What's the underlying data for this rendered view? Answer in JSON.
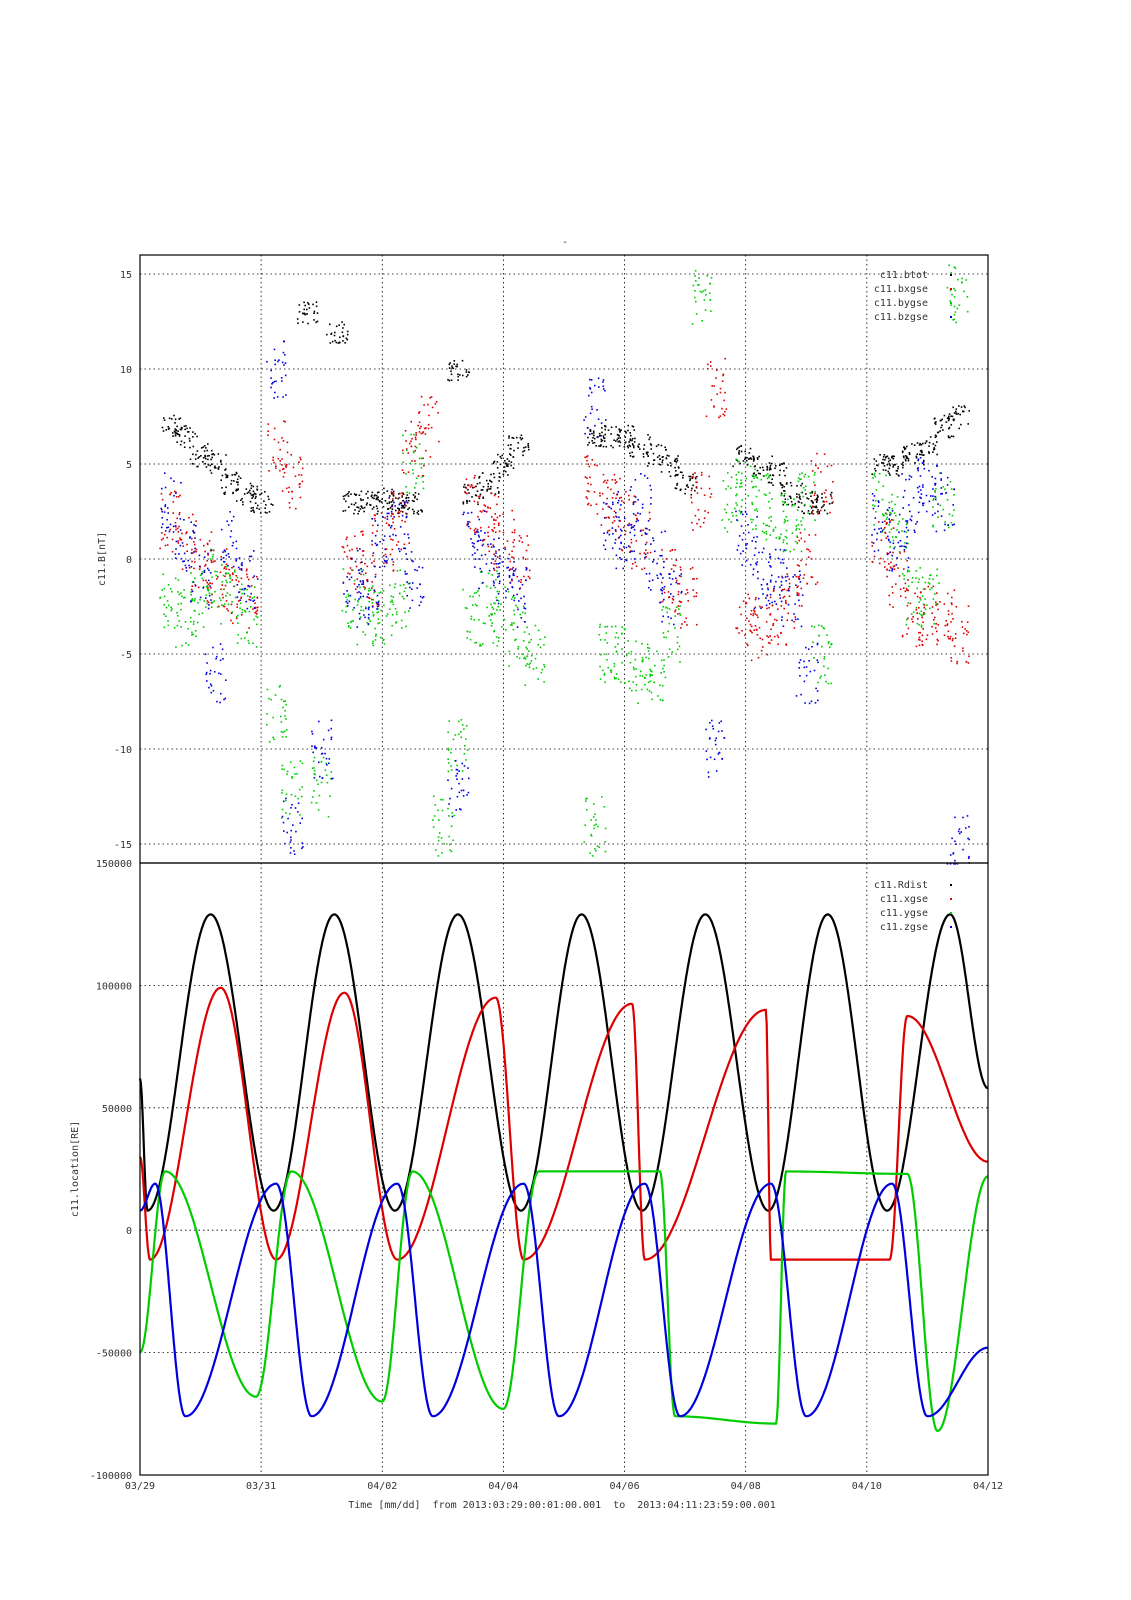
{
  "page_title_mark": "-",
  "colors": {
    "black": "#000000",
    "red": "#dd0000",
    "green": "#00cc00",
    "blue": "#0000dd"
  },
  "chart_data": [
    {
      "type": "scatter",
      "ylabel": "c11.B[nT]",
      "ylim": [
        -16,
        16
      ],
      "yticks": [
        -15,
        -10,
        -5,
        0,
        5,
        10,
        15
      ],
      "xlim": [
        "2013-03-29T00:01:00",
        "2013-04-11T23:59:00"
      ],
      "grid": true,
      "legend_position": "top-right",
      "series": [
        {
          "name": "c11.btot",
          "color": "#000000",
          "x": [
            "03/29 12:00",
            "03/29 18:00",
            "03/30 00:00",
            "03/30 06:00",
            "03/30 12:00",
            "03/30 18:00",
            "03/31 00:00",
            "03/31 18:00",
            "04/01 06:00",
            "04/01 12:00",
            "04/01 18:00",
            "04/02 00:00",
            "04/02 06:00",
            "04/02 12:00",
            "04/03 06:00",
            "04/03 12:00",
            "04/03 18:00",
            "04/04 00:00",
            "04/04 06:00",
            "04/05 12:00",
            "04/05 18:00",
            "04/06 00:00",
            "04/06 06:00",
            "04/06 12:00",
            "04/06 18:00",
            "04/07 00:00",
            "04/07 23:00",
            "04/08 06:00",
            "04/08 12:00",
            "04/08 18:00",
            "04/09 00:00",
            "04/09 06:00",
            "04/10 06:00",
            "04/10 12:00",
            "04/10 18:00",
            "04/11 00:00",
            "04/11 06:00",
            "04/11 12:00"
          ],
          "y": [
            7,
            6.5,
            5.5,
            5,
            4,
            3.5,
            3,
            13,
            12,
            3,
            3,
            3.2,
            3,
            3,
            10,
            3.5,
            4,
            5,
            6,
            6.5,
            6.5,
            6.5,
            6,
            5.5,
            5,
            4,
            5.5,
            5,
            4.5,
            3.5,
            3,
            3,
            5,
            5,
            5.5,
            6,
            7,
            7.5
          ]
        },
        {
          "name": "c11.bxgse",
          "color": "#dd0000",
          "x": [
            "03/29 12:00",
            "03/29 18:00",
            "03/30 00:00",
            "03/30 06:00",
            "03/30 12:00",
            "03/30 18:00",
            "03/31 06:00",
            "03/31 12:00",
            "04/01 12:00",
            "04/01 18:00",
            "04/02 00:00",
            "04/02 06:00",
            "04/02 12:00",
            "04/02 18:00",
            "04/03 12:00",
            "04/03 18:00",
            "04/04 00:00",
            "04/04 06:00",
            "04/05 12:00",
            "04/05 18:00",
            "04/06 00:00",
            "04/06 06:00",
            "04/06 18:00",
            "04/07 00:00",
            "04/07 06:00",
            "04/07 12:00",
            "04/08 00:00",
            "04/08 06:00",
            "04/08 12:00",
            "04/08 18:00",
            "04/09 00:00",
            "04/09 06:00",
            "04/10 06:00",
            "04/10 12:00",
            "04/10 18:00",
            "04/11 00:00",
            "04/11 06:00",
            "04/11 12:00"
          ],
          "y": [
            2,
            1,
            0,
            -1,
            -2,
            -2,
            6,
            4,
            0,
            -1,
            1,
            2,
            6,
            7,
            3,
            2,
            1,
            0,
            4,
            3,
            2,
            1,
            -1,
            -2,
            3,
            9,
            -3,
            -4,
            -3,
            -2,
            0,
            4,
            1,
            -1,
            -3,
            -3,
            -3,
            -4
          ]
        },
        {
          "name": "c11.bygse",
          "color": "#00cc00",
          "x": [
            "03/29 12:00",
            "03/29 18:00",
            "03/30 00:00",
            "03/30 06:00",
            "03/30 12:00",
            "03/30 18:00",
            "03/31 06:00",
            "03/31 12:00",
            "04/01 00:00",
            "04/01 12:00",
            "04/01 18:00",
            "04/02 00:00",
            "04/02 06:00",
            "04/02 12:00",
            "04/03 00:00",
            "04/03 06:00",
            "04/03 12:00",
            "04/03 18:00",
            "04/04 00:00",
            "04/04 06:00",
            "04/04 12:00",
            "04/05 12:00",
            "04/05 18:00",
            "04/06 00:00",
            "04/06 06:00",
            "04/06 12:00",
            "04/06 18:00",
            "04/07 06:00",
            "04/07 18:00",
            "04/08 00:00",
            "04/08 06:00",
            "04/08 12:00",
            "04/08 18:00",
            "04/09 00:00",
            "04/09 06:00",
            "04/10 06:00",
            "04/10 12:00",
            "04/10 18:00",
            "04/11 00:00",
            "04/11 06:00",
            "04/11 12:00"
          ],
          "y": [
            -2,
            -3,
            -2,
            -1,
            -2,
            -3,
            -8,
            -12,
            -12,
            -2,
            -3,
            -3,
            -2,
            5,
            -14,
            -10,
            -3,
            -2,
            -3,
            -4,
            -5,
            -14,
            -5,
            -5,
            -6,
            -6,
            -4,
            14,
            3,
            4,
            3,
            2,
            2,
            3,
            -5,
            3,
            2,
            -2,
            -2,
            3,
            14
          ]
        },
        {
          "name": "c11.bzgse",
          "color": "#0000dd",
          "x": [
            "03/29 12:00",
            "03/29 18:00",
            "03/30 00:00",
            "03/30 06:00",
            "03/30 12:00",
            "03/30 18:00",
            "03/31 06:00",
            "03/31 12:00",
            "04/01 00:00",
            "04/01 12:00",
            "04/01 18:00",
            "04/02 00:00",
            "04/02 06:00",
            "04/02 12:00",
            "04/03 06:00",
            "04/03 12:00",
            "04/03 18:00",
            "04/04 00:00",
            "04/04 06:00",
            "04/05 12:00",
            "04/05 18:00",
            "04/06 00:00",
            "04/06 06:00",
            "04/06 12:00",
            "04/06 18:00",
            "04/07 12:00",
            "04/08 00:00",
            "04/08 06:00",
            "04/08 12:00",
            "04/08 18:00",
            "04/09 00:00",
            "04/10 06:00",
            "04/10 12:00",
            "04/10 18:00",
            "04/11 00:00",
            "04/11 06:00",
            "04/11 12:00"
          ],
          "y": [
            3,
            1,
            -1,
            -6,
            1,
            -1,
            10,
            -14,
            -10,
            -1,
            -2,
            1,
            2,
            -1,
            -12,
            1,
            0,
            -1,
            -2,
            8,
            2,
            1,
            3,
            0,
            -2,
            -10,
            1,
            -1,
            -1,
            -2,
            -6,
            2,
            1,
            3,
            4,
            3,
            -15
          ]
        }
      ]
    },
    {
      "type": "line",
      "ylabel": "c11.location[RE]",
      "xlabel": "Time [mm/dd]  from 2013:03:29:00:01:00.001  to  2013:04:11:23:59:00.001",
      "ylim": [
        -100000,
        150000
      ],
      "yticks": [
        -100000,
        -50000,
        0,
        50000,
        100000,
        150000
      ],
      "xlim": [
        "2013-03-29T00:01:00",
        "2013-04-11T23:59:00"
      ],
      "xticks": [
        "03/29",
        "03/31",
        "04/02",
        "04/04",
        "04/06",
        "04/08",
        "04/10",
        "04/12"
      ],
      "grid": true,
      "legend_position": "top-right",
      "series": [
        {
          "name": "c11.Rdist",
          "color": "#000000",
          "perigee_dates": [
            "03/29 03:00",
            "03/31 05:00",
            "04/02 05:00",
            "04/04 07:00",
            "04/06 07:00",
            "04/08 09:00",
            "04/10 08:00"
          ],
          "apogee_value": 129000,
          "perigee_value": 8000,
          "end_value": 58000
        },
        {
          "name": "c11.xgse",
          "color": "#dd0000",
          "peak_dates": [
            "03/30 08:00",
            "04/01 09:00",
            "04/03 21:00",
            "04/06 03:00",
            "04/08 08:00",
            "04/10 16:00"
          ],
          "peak_values": [
            99000,
            97000,
            95000,
            92500,
            90000,
            87500
          ],
          "min_value": -12000
        },
        {
          "name": "c11.ygse",
          "color": "#00cc00",
          "peak_dates": [
            "03/29 10:00",
            "03/31 12:00",
            "04/02 12:00",
            "04/04 14:00",
            "04/06 14:00",
            "04/08 16:00",
            "04/10 16:00"
          ],
          "peak_values": [
            24000,
            24000,
            24000,
            24000,
            24000,
            24000,
            23000
          ],
          "min_dates": [
            "03/30 22:00",
            "04/02 00:00",
            "04/04 00:00",
            "04/06 20:00",
            "04/08 12:00",
            "04/11 04:00"
          ],
          "min_values": [
            -68000,
            -70000,
            -73000,
            -76000,
            -79000,
            -82000
          ]
        },
        {
          "name": "c11.zgse",
          "color": "#0000dd",
          "peak_dates": [
            "03/29 06:00",
            "03/31 06:00",
            "04/02 06:00",
            "04/04 08:00",
            "04/06 08:00",
            "04/08 10:00",
            "04/10 10:00"
          ],
          "peak_values": [
            19000,
            19000,
            19000,
            19000,
            19000,
            19000,
            19000
          ],
          "min_dates": [
            "03/29 18:00",
            "03/31 20:00",
            "04/02 20:00",
            "04/04 22:00",
            "04/06 22:00",
            "04/09 00:00",
            "04/11 00:00"
          ],
          "min_values": [
            -76000,
            -76000,
            -76000,
            -76000,
            -76000,
            -76000,
            -76000
          ]
        }
      ]
    }
  ]
}
